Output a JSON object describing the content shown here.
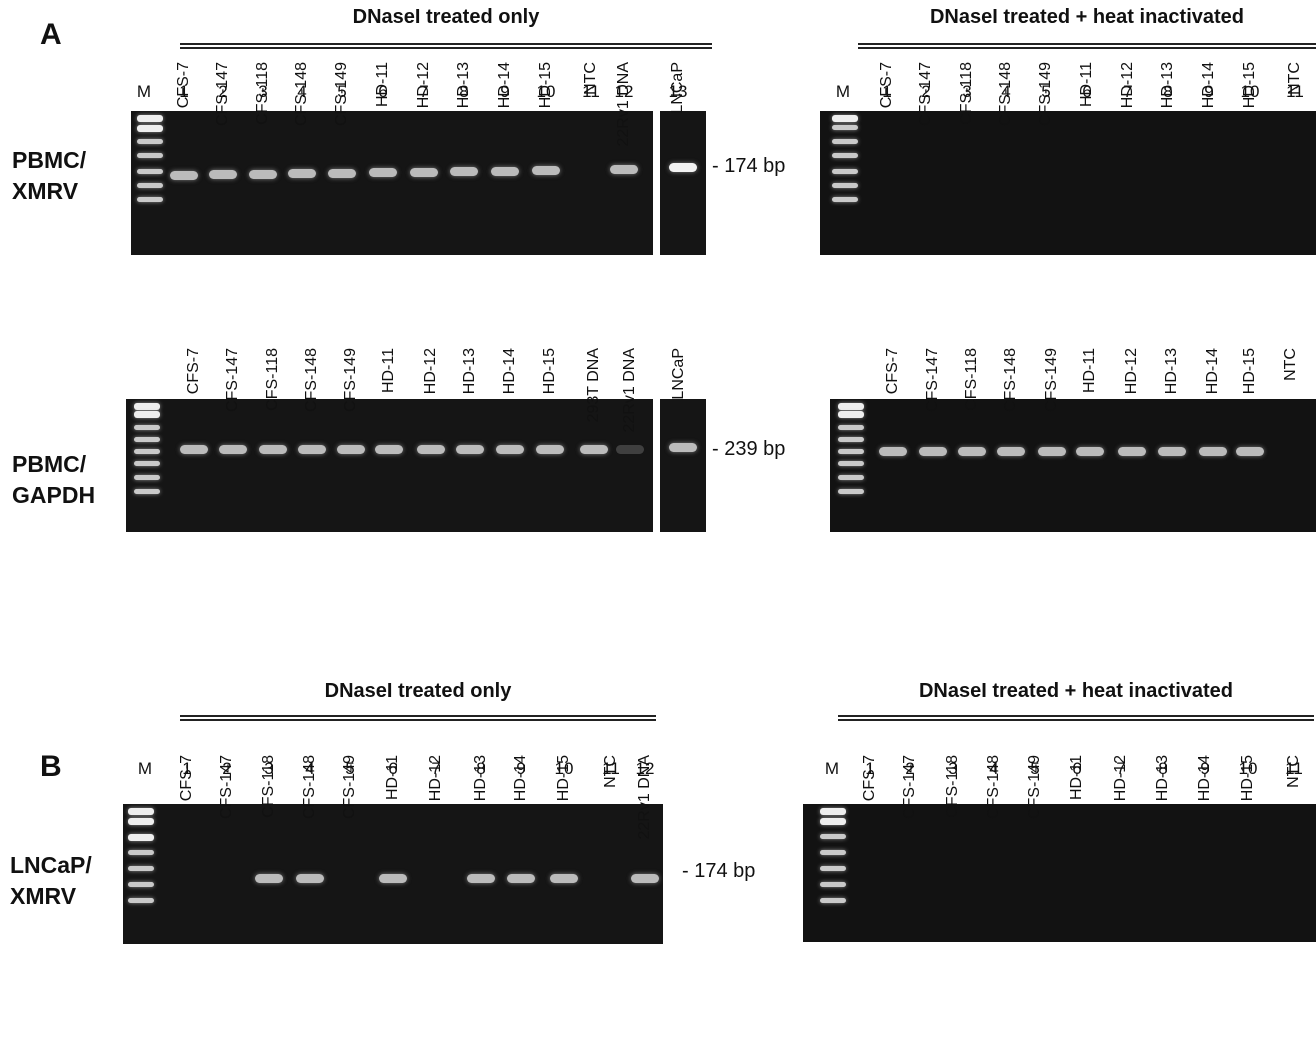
{
  "panels": {
    "A": "A",
    "B": "B"
  },
  "conditions": {
    "dnase_only": "DNaseI treated only",
    "dnase_heat": "DNaseI treated + heat inactivated"
  },
  "row_labels": {
    "pbmc_xmrv": [
      "PBMC/",
      "XMRV"
    ],
    "pbmc_gapdh": [
      "PBMC/",
      "GAPDH"
    ],
    "lncap_xmrv": [
      "LNCaP/",
      "XMRV"
    ]
  },
  "marker_label": "M",
  "band_sizes": {
    "xmrv": "- 174 bp",
    "gapdh": "- 239 bp"
  },
  "lanes": {
    "a_left_numbers": [
      "1",
      "2",
      "3",
      "4",
      "5",
      "6",
      "7",
      "8",
      "9",
      "10",
      "11",
      "12",
      "13"
    ],
    "a_right_numbers": [
      "1",
      "2",
      "3",
      "4",
      "5",
      "6",
      "7",
      "8",
      "9",
      "10",
      "11"
    ],
    "b_left_numbers": [
      "1",
      "2",
      "3",
      "4",
      "5",
      "6",
      "7",
      "8",
      "9",
      "10",
      "11",
      "12"
    ],
    "b_right_numbers": [
      "1",
      "2",
      "3",
      "4",
      "5",
      "6",
      "7",
      "8",
      "9",
      "10",
      "11"
    ],
    "a_xmrv_left": [
      "CFS-7",
      "CFS-147",
      "CFS-118",
      "CFS-148",
      "CFS-149",
      "HD-11",
      "HD-12",
      "HD-13",
      "HD-14",
      "HD-15",
      "NTC",
      "22Rv1 DNA",
      "LNCaP"
    ],
    "a_gapdh_left": [
      "CFS-7",
      "CFS-147",
      "CFS-118",
      "CFS-148",
      "CFS-149",
      "HD-11",
      "HD-12",
      "HD-13",
      "HD-14",
      "HD-15",
      "293T DNA",
      "22Rv1 DNA",
      "LNCaP"
    ],
    "right_11": [
      "CFS-7",
      "CFS-147",
      "CFS-118",
      "CFS-148",
      "CFS-149",
      "HD-11",
      "HD-12",
      "HD-13",
      "HD-14",
      "HD-15",
      "NTC"
    ],
    "b_left": [
      "CFS-7",
      "CFS-147",
      "CFS-118",
      "CFS-148",
      "CFS-149",
      "HD-11",
      "HD-12",
      "HD-13",
      "HD-14",
      "HD-15",
      "NTC",
      "22Rv1 DNA"
    ]
  },
  "band_presence": {
    "a_xmrv_left": [
      1,
      1,
      1,
      1,
      1,
      1,
      1,
      1,
      1,
      1,
      0,
      1,
      1
    ],
    "a_gapdh_left": [
      1,
      1,
      1,
      1,
      1,
      1,
      1,
      1,
      1,
      1,
      1,
      0.3,
      1
    ],
    "a_gapdh_right": [
      1,
      1,
      1,
      1,
      1,
      1,
      1,
      1,
      1,
      1,
      0
    ],
    "b_xmrv_left": [
      0,
      0,
      1,
      1,
      0,
      1,
      0,
      1,
      1,
      1,
      0,
      1
    ],
    "empty_right": [
      0,
      0,
      0,
      0,
      0,
      0,
      0,
      0,
      0,
      0,
      0
    ]
  }
}
